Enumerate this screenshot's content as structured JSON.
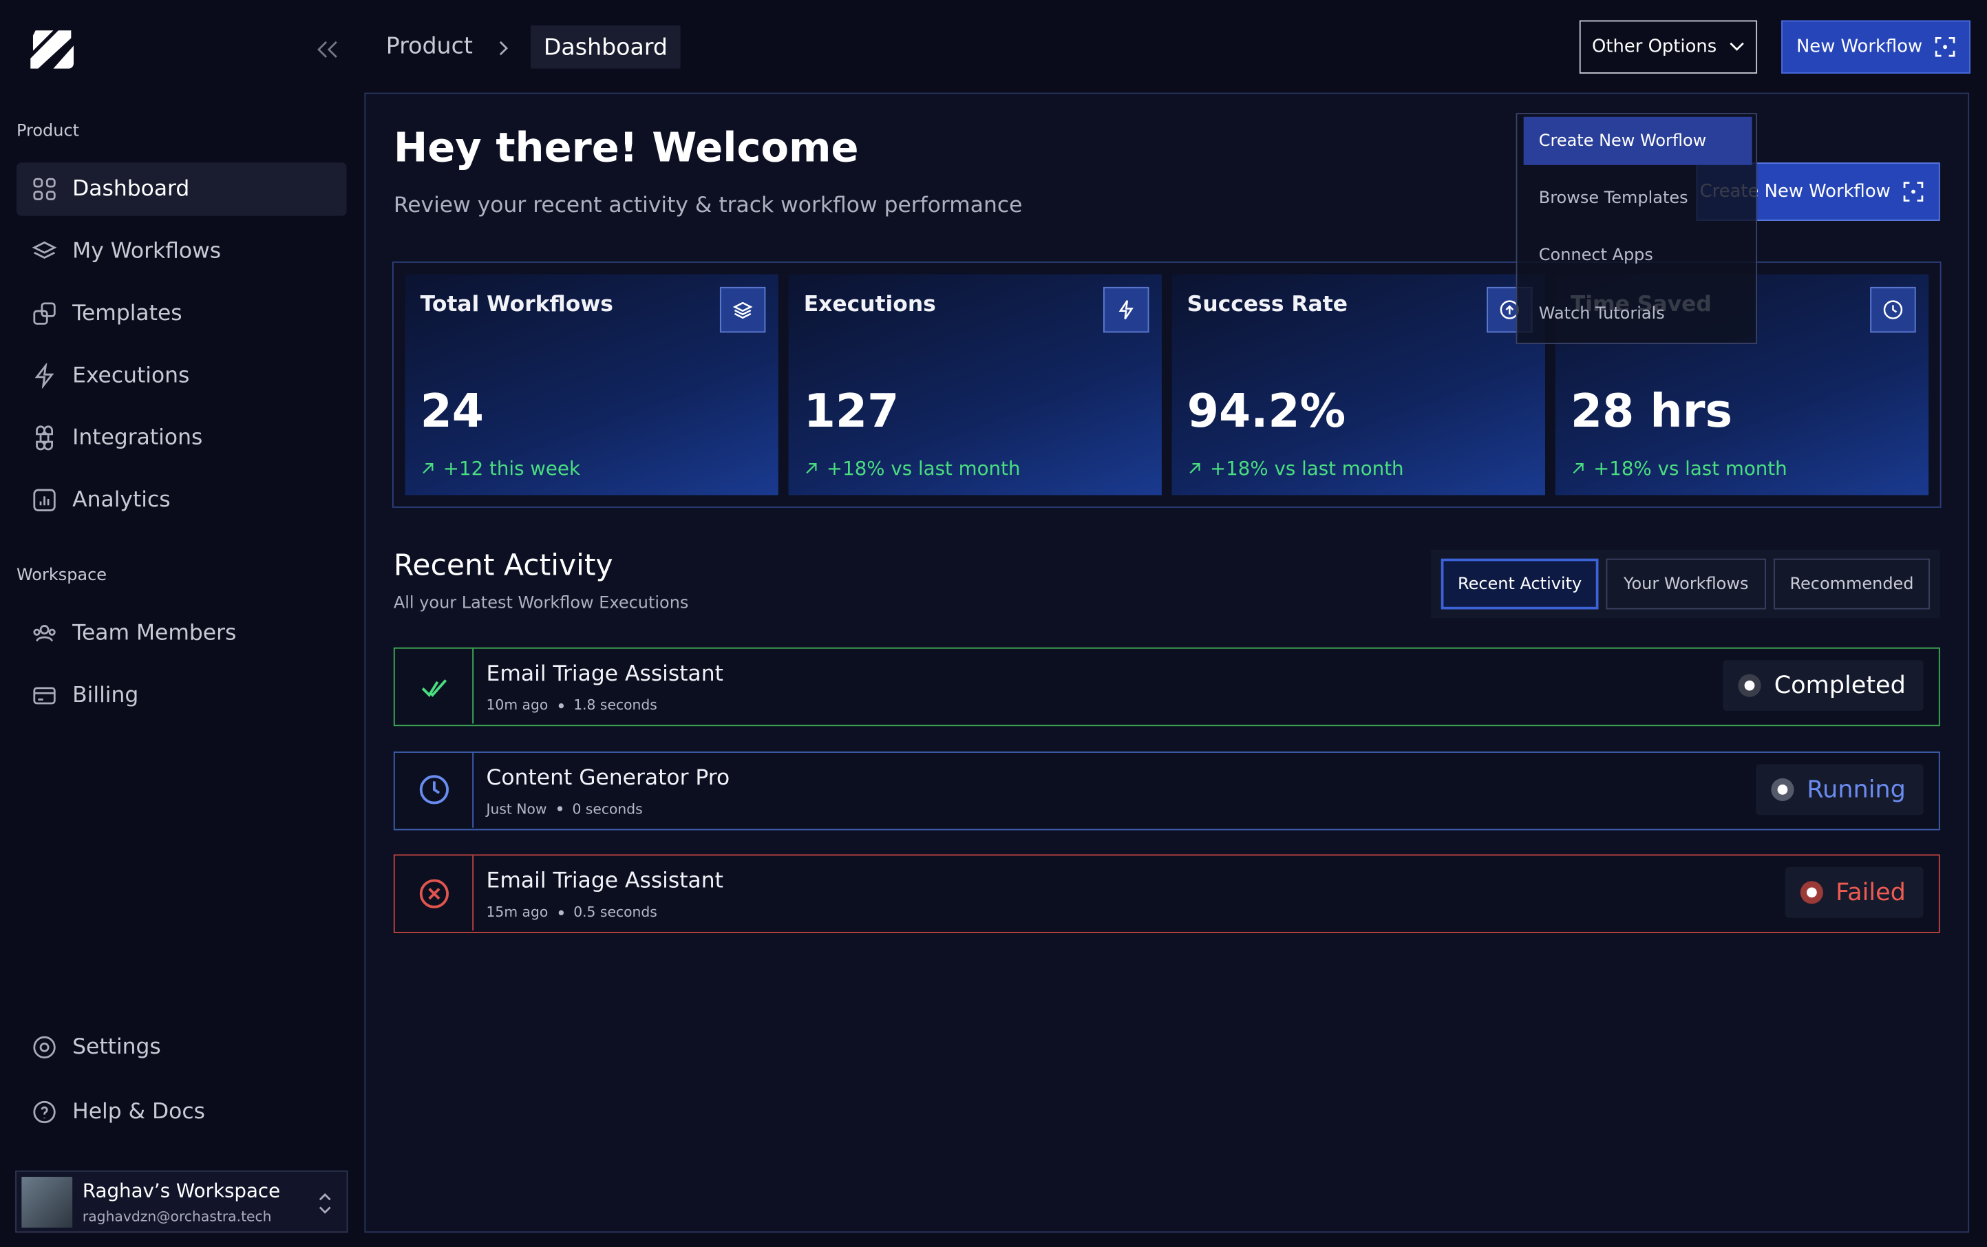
{
  "sidebar": {
    "sections": [
      {
        "title": "Product",
        "items": [
          "Dashboard",
          "My Workflows",
          "Templates",
          "Executions",
          "Integrations",
          "Analytics"
        ]
      },
      {
        "title": "Workspace",
        "items": [
          "Team Members",
          "Billing"
        ]
      }
    ],
    "footer": [
      "Settings",
      "Help & Docs"
    ],
    "user": {
      "name": "Raghav’s Workspace",
      "email": "raghavdzn@orchastra.tech"
    }
  },
  "breadcrumb": [
    "Product",
    "Dashboard"
  ],
  "top_buttons": [
    "Other Options",
    "New Workflow"
  ],
  "dropdown": [
    "Create New Worflow",
    "Browse Templates",
    "Connect Apps",
    "Watch Tutorials"
  ],
  "header": {
    "title": "Hey there! Welcome",
    "subtitle": "Review your recent activity & track workflow performance",
    "button": "Create New Workflow"
  },
  "stats": [
    {
      "label": "Total Workflows",
      "value": "24",
      "change": "+12 this week"
    },
    {
      "label": "Executions",
      "value": "127",
      "change": "+18% vs last month"
    },
    {
      "label": "Success Rate",
      "value": "94.2%",
      "change": "+18% vs last month"
    },
    {
      "label": "Time Saved",
      "value": "28 hrs",
      "change": "+18% vs last month"
    }
  ],
  "activity": {
    "title": "Recent Activity",
    "subtitle": "All your Latest Workflow Executions",
    "tabs": [
      "Recent Activity",
      "Your Workflows",
      "Recommended"
    ],
    "rows": [
      {
        "name": "Email Triage Assistant",
        "time": "10m ago",
        "duration": "1.8 seconds",
        "status": "Completed"
      },
      {
        "name": "Content Generator Pro",
        "time": "Just Now",
        "duration": "0 seconds",
        "status": "Running"
      },
      {
        "name": "Email Triage Assistant",
        "time": "15m ago",
        "duration": "0.5 seconds",
        "status": "Failed"
      }
    ]
  }
}
